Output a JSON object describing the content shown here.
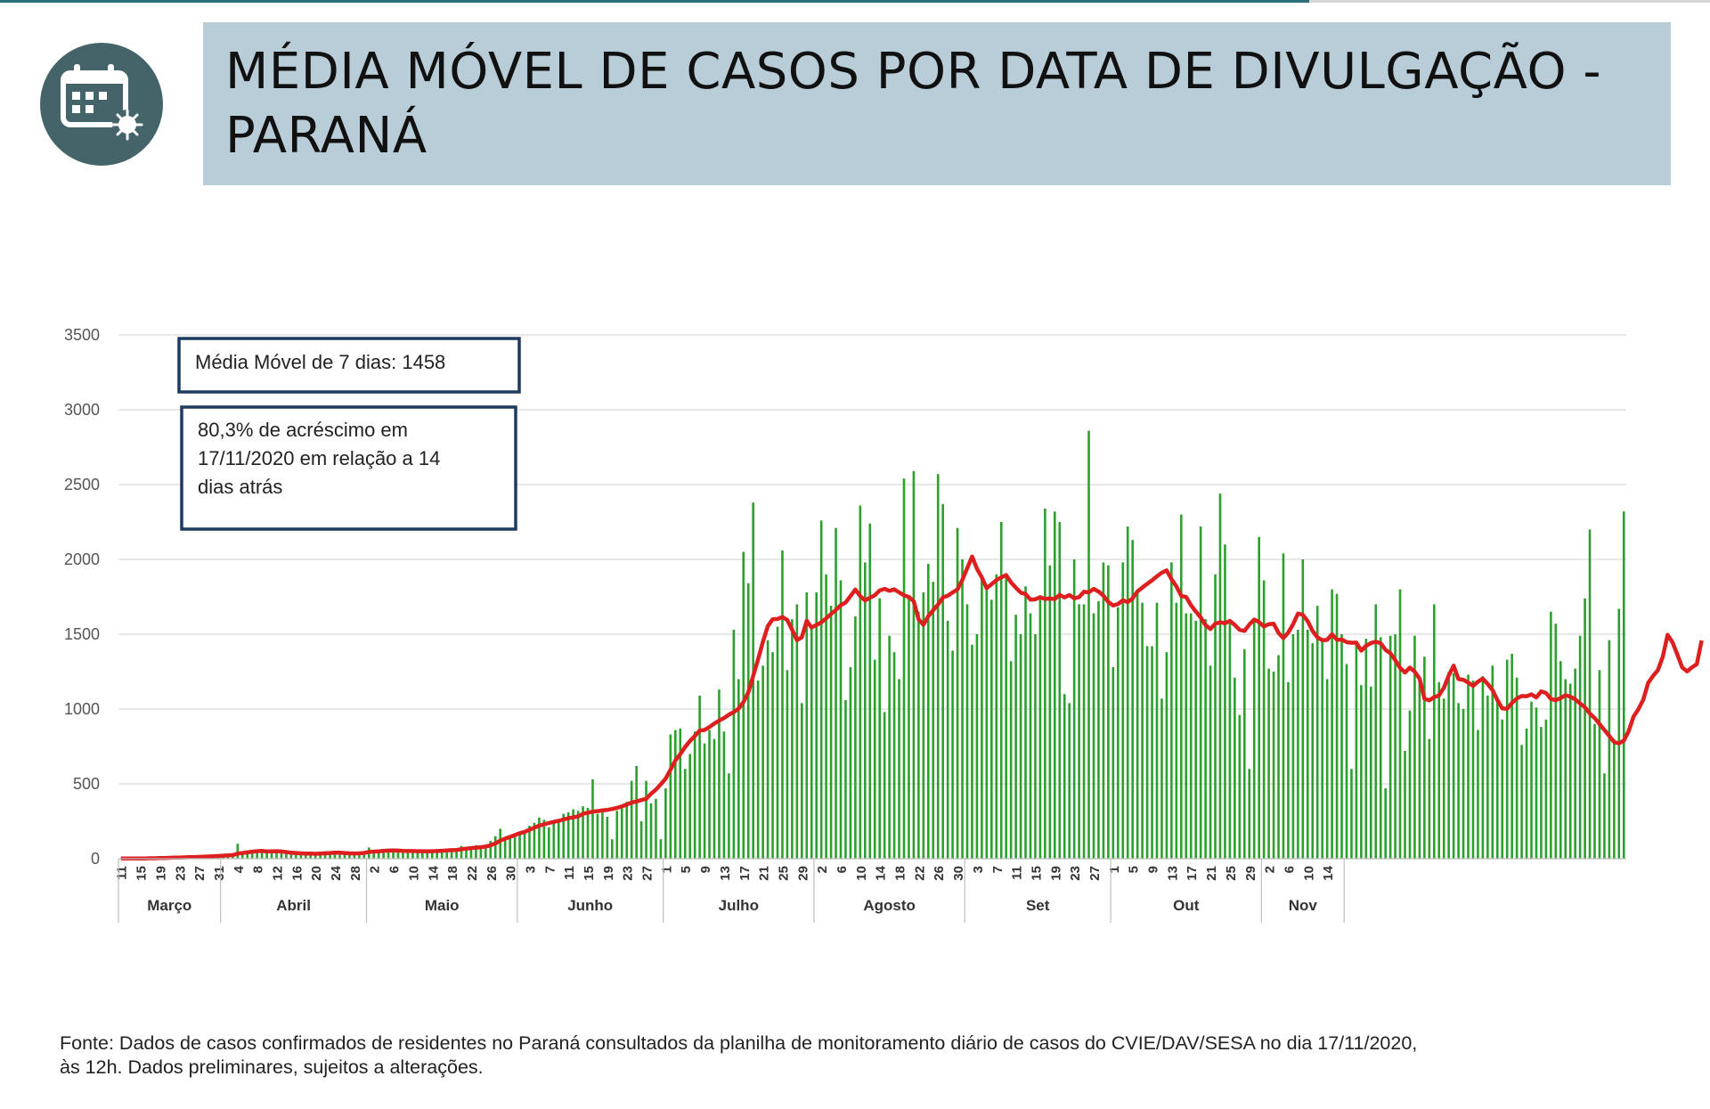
{
  "header": {
    "title": "MÉDIA MÓVEL DE CASOS POR DATA DE DIVULGAÇÃO - PARANÁ",
    "icon": "calendar-virus-icon"
  },
  "annotations": {
    "moving_average": "Média Móvel de 7 dias: 1458",
    "change_line1": "80,3% de acréscimo em",
    "change_line2": "17/11/2020  em relação a 14",
    "change_line3": "dias atrás"
  },
  "footer": {
    "line1": "Fonte: Dados de casos confirmados de residentes no Paraná consultados da planilha de monitoramento diário de casos do CVIE/DAV/SESA no dia 17/11/2020,",
    "line2": "às 12h. Dados preliminares, sujeitos a alterações."
  },
  "colors": {
    "bars": "#2ca02c",
    "moving_average": "#dd1f1f",
    "title_box": "#b8cdd8",
    "logo": "#44646a",
    "annotation_border": "#1f3a5f"
  },
  "chart_data": {
    "type": "bar",
    "title": "",
    "xlabel": "",
    "ylabel": "",
    "ylim": [
      0,
      3500
    ],
    "yticks": [
      0,
      500,
      1000,
      1500,
      2000,
      2500,
      3000,
      3500
    ],
    "grid": true,
    "start_date": "2020-03-11",
    "x_tick_labels": [
      "11",
      "15",
      "19",
      "23",
      "27",
      "31",
      "4",
      "8",
      "12",
      "16",
      "20",
      "24",
      "28",
      "2",
      "6",
      "10",
      "14",
      "18",
      "22",
      "26",
      "30",
      "3",
      "7",
      "11",
      "15",
      "19",
      "23",
      "27",
      "1",
      "5",
      "9",
      "13",
      "17",
      "21",
      "25",
      "29",
      "2",
      "6",
      "10",
      "14",
      "18",
      "22",
      "26",
      "30",
      "3",
      "7",
      "11",
      "15",
      "19",
      "23",
      "27",
      "1",
      "5",
      "9",
      "13",
      "17",
      "21",
      "25",
      "29",
      "2",
      "6",
      "10",
      "14"
    ],
    "months": [
      {
        "label": "Março",
        "from": "2020-03-11",
        "to": "2020-03-31"
      },
      {
        "label": "Abril",
        "from": "2020-04-01",
        "to": "2020-04-30"
      },
      {
        "label": "Maio",
        "from": "2020-05-01",
        "to": "2020-05-31"
      },
      {
        "label": "Junho",
        "from": "2020-06-01",
        "to": "2020-06-30"
      },
      {
        "label": "Julho",
        "from": "2020-07-01",
        "to": "2020-07-31"
      },
      {
        "label": "Agosto",
        "from": "2020-08-01",
        "to": "2020-08-31"
      },
      {
        "label": "Set",
        "from": "2020-09-01",
        "to": "2020-09-30"
      },
      {
        "label": "Out",
        "from": "2020-10-01",
        "to": "2020-10-31"
      },
      {
        "label": "Nov",
        "from": "2020-11-01",
        "to": "2020-11-17"
      }
    ],
    "series": [
      {
        "name": "",
        "type": "bar",
        "color": "#2ca02c",
        "values": [
          1,
          1,
          2,
          2,
          3,
          3,
          5,
          4,
          6,
          8,
          5,
          10,
          8,
          12,
          10,
          15,
          12,
          14,
          18,
          20,
          22,
          25,
          28,
          30,
          100,
          35,
          40,
          45,
          50,
          55,
          48,
          52,
          40,
          42,
          38,
          36,
          34,
          30,
          28,
          32,
          40,
          45,
          50,
          45,
          38,
          30,
          28,
          32,
          35,
          45,
          50,
          75,
          60,
          55,
          58,
          50,
          45,
          48,
          52,
          55,
          50,
          48,
          52,
          45,
          50,
          58,
          60,
          65,
          55,
          62,
          85,
          70,
          80,
          90,
          70,
          85,
          120,
          150,
          200,
          130,
          140,
          160,
          180,
          175,
          220,
          240,
          275,
          260,
          210,
          250,
          260,
          300,
          310,
          330,
          320,
          350,
          340,
          530,
          300,
          330,
          280,
          130,
          320,
          350,
          380,
          520,
          620,
          250,
          520,
          370,
          400,
          130,
          470,
          830,
          860,
          870,
          600,
          700,
          850,
          1090,
          770,
          860,
          800,
          1130,
          850,
          570,
          1530,
          1200,
          2050,
          1840,
          2380,
          1190,
          1290,
          1460,
          1380,
          1550,
          2060,
          1260,
          1600,
          1700,
          1040,
          1780,
          1560,
          1780,
          2260,
          1900,
          1690,
          2210,
          1860,
          1060,
          1280,
          1620,
          2360,
          1980,
          2240,
          1330,
          1740,
          980,
          1490,
          1380,
          1200,
          2540,
          1760,
          2590,
          1650,
          1780,
          1970,
          1850,
          2570,
          2370,
          1590,
          1390,
          2210,
          2000,
          1700,
          1430,
          1500,
          1880,
          1800,
          1730,
          1900,
          2250,
          1890,
          1320,
          1630,
          1500,
          1820,
          1640,
          1500,
          1760,
          2340,
          1960,
          2320,
          2250,
          1100,
          1040,
          2000,
          1700,
          1700,
          2860,
          1640,
          1720,
          1980,
          1960,
          1280,
          1680,
          1980,
          2220,
          2130,
          1800,
          1710,
          1420,
          1420,
          1710,
          1070,
          1380,
          1980,
          1710,
          2300,
          1640,
          1640,
          1590,
          2220,
          1600,
          1290,
          1900,
          2440,
          2100,
          1580,
          1210,
          960,
          1400,
          600,
          1610,
          2150,
          1860,
          1270,
          1250,
          1360,
          2040,
          1180,
          1500,
          1530,
          2000,
          1530,
          1440,
          1690,
          1450,
          1200,
          1800,
          1770,
          1500,
          1300,
          600,
          1440,
          1160,
          1470,
          1150,
          1700,
          1480,
          470,
          1490,
          1500,
          1800,
          720,
          990,
          1490,
          1200,
          1350,
          800,
          1700,
          1180,
          1070,
          1250,
          1240,
          1040,
          1000,
          1230,
          1190,
          860,
          1220,
          1090,
          1290,
          1060,
          930,
          1330,
          1370,
          1210,
          760,
          870,
          1050,
          1010,
          880,
          930,
          1650,
          1570,
          1320,
          1200,
          1170,
          1270,
          1490,
          1740,
          2200,
          900,
          1260,
          570,
          1460,
          800,
          1670,
          2320
        ]
      },
      {
        "name": "",
        "type": "line",
        "color": "#dd1f1f",
        "values": [
          1,
          1,
          1,
          1,
          2,
          2,
          3,
          3,
          4,
          5,
          6,
          7,
          8,
          9,
          10,
          11,
          12,
          13,
          15,
          16,
          18,
          20,
          22,
          24,
          34,
          38,
          42,
          47,
          50,
          52,
          48,
          49,
          50,
          48,
          44,
          40,
          38,
          36,
          34,
          34,
          33,
          34,
          36,
          38,
          40,
          40,
          38,
          36,
          35,
          36,
          38,
          45,
          47,
          49,
          52,
          54,
          55,
          54,
          52,
          51,
          51,
          50,
          50,
          49,
          50,
          51,
          53,
          55,
          57,
          58,
          63,
          67,
          71,
          74,
          77,
          81,
          90,
          102,
          121,
          134,
          146,
          158,
          170,
          179,
          193,
          207,
          220,
          230,
          238,
          246,
          253,
          262,
          270,
          276,
          283,
          300,
          307,
          314,
          318,
          323,
          326,
          332,
          339,
          350,
          362,
          375,
          382,
          392,
          400,
          434,
          462,
          497,
          535,
          596,
          656,
          699,
          746,
          787,
          820,
          856,
          860,
          880,
          903,
          923,
          940,
          962,
          980,
          1003,
          1047,
          1111,
          1222,
          1333,
          1450,
          1554,
          1600,
          1602,
          1615,
          1595,
          1530,
          1460,
          1480,
          1590,
          1545,
          1562,
          1580,
          1606,
          1635,
          1662,
          1694,
          1712,
          1755,
          1799,
          1755,
          1726,
          1744,
          1760,
          1792,
          1803,
          1790,
          1800,
          1780,
          1760,
          1749,
          1720,
          1600,
          1563,
          1620,
          1660,
          1698,
          1746,
          1758,
          1779,
          1800,
          1863,
          1941,
          2019,
          1938,
          1880,
          1808,
          1834,
          1862,
          1880,
          1895,
          1847,
          1811,
          1778,
          1769,
          1731,
          1734,
          1747,
          1736,
          1738,
          1735,
          1763,
          1746,
          1762,
          1740,
          1748,
          1784,
          1779,
          1803,
          1785,
          1758,
          1715,
          1692,
          1702,
          1727,
          1714,
          1740,
          1786,
          1812,
          1837,
          1860,
          1887,
          1911,
          1927,
          1867,
          1821,
          1756,
          1749,
          1694,
          1651,
          1613,
          1561,
          1535,
          1570,
          1580,
          1573,
          1589,
          1562,
          1529,
          1522,
          1565,
          1598,
          1581,
          1551,
          1567,
          1570,
          1509,
          1474,
          1510,
          1567,
          1638,
          1630,
          1587,
          1522,
          1479,
          1460,
          1462,
          1500,
          1463,
          1464,
          1447,
          1443,
          1444,
          1390,
          1422,
          1441,
          1450,
          1440,
          1395,
          1373,
          1327,
          1275,
          1244,
          1277,
          1250,
          1203,
          1069,
          1058,
          1080,
          1091,
          1142,
          1224,
          1290,
          1200,
          1196,
          1177,
          1155,
          1183,
          1203,
          1168,
          1127,
          1060,
          1004,
          1002,
          1041,
          1071,
          1087,
          1086,
          1098,
          1078,
          1118,
          1107,
          1068,
          1059,
          1073,
          1092,
          1083,
          1065,
          1037,
          1012,
          970,
          940,
          900,
          860,
          820,
          780,
          770,
          790,
          853,
          950,
          1000,
          1063,
          1175,
          1221,
          1260,
          1350,
          1496,
          1446,
          1365,
          1278,
          1252,
          1278,
          1300,
          1458
        ]
      }
    ]
  }
}
